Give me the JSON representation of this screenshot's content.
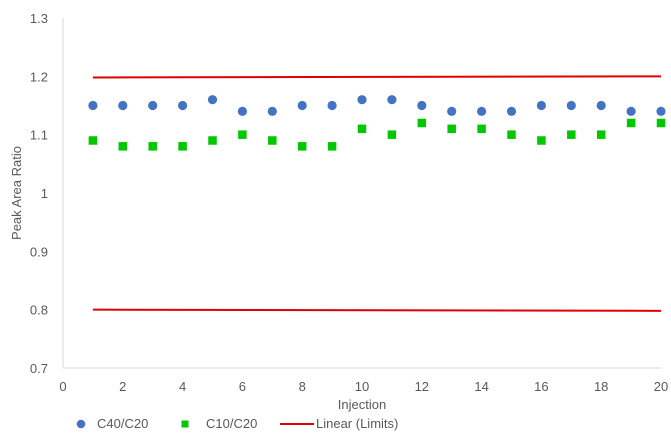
{
  "chart_data": {
    "type": "scatter",
    "title": "",
    "xlabel": "Injection",
    "ylabel": "Peak Area Ratio",
    "xlim": [
      0,
      20
    ],
    "ylim": [
      0.7,
      1.3
    ],
    "x_ticks": [
      0,
      2,
      4,
      6,
      8,
      10,
      12,
      14,
      16,
      18,
      20
    ],
    "y_ticks": [
      0.7,
      0.8,
      0.9,
      1.0,
      1.1,
      1.2,
      1.3
    ],
    "x_tick_labels": [
      "0",
      "2",
      "4",
      "6",
      "8",
      "10",
      "12",
      "14",
      "16",
      "18",
      "20"
    ],
    "y_tick_labels": [
      "0.7",
      "0.8",
      "0.9",
      "1",
      "1.1",
      "1.2",
      "1.3"
    ],
    "grid": false,
    "legend_position": "bottom",
    "series": [
      {
        "name": "C40/C20",
        "marker": "circle",
        "color": "#4472C4",
        "x": [
          1,
          2,
          3,
          4,
          5,
          6,
          7,
          8,
          9,
          10,
          11,
          12,
          13,
          14,
          15,
          16,
          17,
          18,
          19,
          20
        ],
        "y": [
          1.15,
          1.15,
          1.15,
          1.15,
          1.16,
          1.14,
          1.14,
          1.15,
          1.15,
          1.16,
          1.16,
          1.15,
          1.14,
          1.14,
          1.14,
          1.15,
          1.15,
          1.15,
          1.14,
          1.14
        ]
      },
      {
        "name": "C10/C20",
        "marker": "square",
        "color": "#00C800",
        "x": [
          1,
          2,
          3,
          4,
          5,
          6,
          7,
          8,
          9,
          10,
          11,
          12,
          13,
          14,
          15,
          16,
          17,
          18,
          19,
          20
        ],
        "y": [
          1.09,
          1.08,
          1.08,
          1.08,
          1.09,
          1.1,
          1.09,
          1.08,
          1.08,
          1.11,
          1.1,
          1.12,
          1.11,
          1.11,
          1.1,
          1.09,
          1.1,
          1.1,
          1.12,
          1.12
        ]
      }
    ],
    "lines": [
      {
        "name": "Linear (Limits)",
        "color": "#E00000",
        "x": [
          1,
          20
        ],
        "y": [
          1.198,
          1.2
        ]
      },
      {
        "name": "Linear (Limits)",
        "color": "#E00000",
        "x": [
          1,
          20
        ],
        "y": [
          0.8,
          0.798
        ]
      }
    ],
    "legend": [
      {
        "label": "C40/C20",
        "marker": "circle",
        "color": "#4472C4"
      },
      {
        "label": "C10/C20",
        "marker": "square",
        "color": "#00C800"
      },
      {
        "label": "Linear (Limits)",
        "marker": "line",
        "color": "#E00000"
      }
    ],
    "axis_color": "#D9D9D9",
    "text_color": "#595959"
  }
}
